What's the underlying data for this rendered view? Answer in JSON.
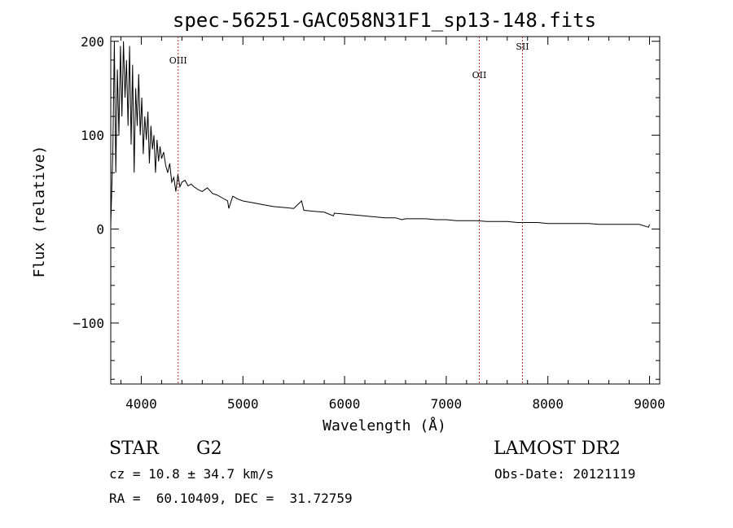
{
  "chart_data": {
    "type": "line",
    "title": "spec-56251-GAC058N31F1_sp13-148.fits",
    "xlabel": "Wavelength (Å)",
    "ylabel": "Flux (relative)",
    "xlim": [
      3700,
      9100
    ],
    "ylim": [
      -165,
      205
    ],
    "xticks": [
      4000,
      5000,
      6000,
      7000,
      8000,
      9000
    ],
    "yticks": [
      -100,
      0,
      100,
      200
    ],
    "grid": false,
    "line_color": "#000000",
    "marker_color": "#b22222",
    "lines": [
      {
        "label": "OIII",
        "wavelength": 4363
      },
      {
        "label": "OII",
        "wavelength": 7325
      },
      {
        "label": "SII",
        "wavelength": 7750
      }
    ],
    "spectrum": {
      "x": [
        3700,
        3720,
        3735,
        3750,
        3765,
        3780,
        3795,
        3810,
        3825,
        3840,
        3855,
        3870,
        3885,
        3900,
        3915,
        3930,
        3945,
        3960,
        3975,
        3990,
        4005,
        4020,
        4035,
        4050,
        4065,
        4080,
        4095,
        4110,
        4125,
        4140,
        4155,
        4170,
        4185,
        4200,
        4220,
        4240,
        4260,
        4280,
        4300,
        4320,
        4340,
        4360,
        4380,
        4400,
        4430,
        4460,
        4490,
        4520,
        4560,
        4600,
        4650,
        4700,
        4750,
        4800,
        4850,
        4861,
        4900,
        4950,
        5000,
        5100,
        5200,
        5300,
        5400,
        5500,
        5577,
        5600,
        5700,
        5800,
        5890,
        5900,
        6000,
        6100,
        6200,
        6300,
        6400,
        6500,
        6563,
        6600,
        6700,
        6800,
        6900,
        7000,
        7100,
        7200,
        7300,
        7400,
        7500,
        7600,
        7700,
        7800,
        7900,
        8000,
        8100,
        8200,
        8300,
        8400,
        8500,
        8600,
        8700,
        8800,
        8900,
        8990,
        9000
      ],
      "y": [
        5,
        80,
        200,
        60,
        170,
        100,
        195,
        120,
        200,
        140,
        180,
        110,
        195,
        90,
        175,
        60,
        150,
        110,
        165,
        100,
        140,
        80,
        120,
        95,
        125,
        70,
        110,
        85,
        100,
        60,
        95,
        72,
        88,
        75,
        82,
        68,
        60,
        70,
        50,
        55,
        40,
        58,
        45,
        50,
        52,
        46,
        48,
        45,
        42,
        40,
        44,
        38,
        36,
        33,
        30,
        22,
        35,
        32,
        30,
        28,
        26,
        24,
        23,
        22,
        30,
        20,
        19,
        18,
        14,
        17,
        16,
        15,
        14,
        13,
        12,
        12,
        10,
        11,
        11,
        11,
        10,
        10,
        9,
        9,
        9,
        8,
        8,
        8,
        7,
        7,
        7,
        6,
        6,
        6,
        6,
        6,
        5,
        5,
        5,
        5,
        5,
        2,
        5
      ]
    }
  },
  "info": {
    "object_class": "STAR",
    "subclass": "G2",
    "survey": "LAMOST DR2",
    "redshift": "cz = 10.8 ± 34.7 km/s",
    "obs_date": "Obs-Date: 20121119",
    "coords": "RA =  60.10409, DEC =  31.72759"
  }
}
